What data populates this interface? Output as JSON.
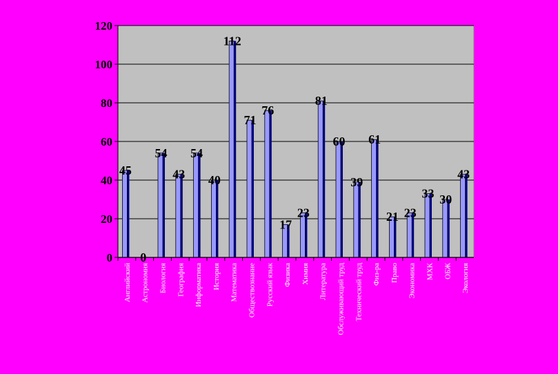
{
  "chart_data": {
    "type": "bar",
    "categories": [
      "Английский",
      "Астрономия",
      "Биология",
      "География",
      "Информатика",
      "История",
      "Математика",
      "Обществознание",
      "Русский язык",
      "Физика",
      "Химия",
      "Литература",
      "Обслуживающий труд",
      "Технический труд",
      "Физ-ра",
      "Право",
      "Экономика",
      "МХК",
      "ОБЖ",
      "Экология"
    ],
    "values": [
      45,
      0,
      54,
      43,
      54,
      40,
      112,
      71,
      76,
      17,
      23,
      81,
      60,
      39,
      61,
      21,
      23,
      33,
      30,
      43
    ],
    "data_labels": [
      "45",
      "0",
      "54",
      "43",
      "54",
      "40",
      "112",
      "71",
      "76",
      "17",
      "23",
      "81",
      "60",
      "39",
      "61",
      "21",
      "23",
      "33",
      "30",
      "43"
    ],
    "yticks": [
      "0",
      "20",
      "40",
      "60",
      "80",
      "100",
      "120"
    ],
    "ylim": [
      0,
      120
    ],
    "grid": true,
    "colors": {
      "background": "#ff00ff",
      "plot_area": "#c0c0c0",
      "bar_fill": "#9999ff",
      "bar_shadow": "#000080",
      "gridline": "#000000",
      "x_tick_text": "#ffffff"
    }
  }
}
